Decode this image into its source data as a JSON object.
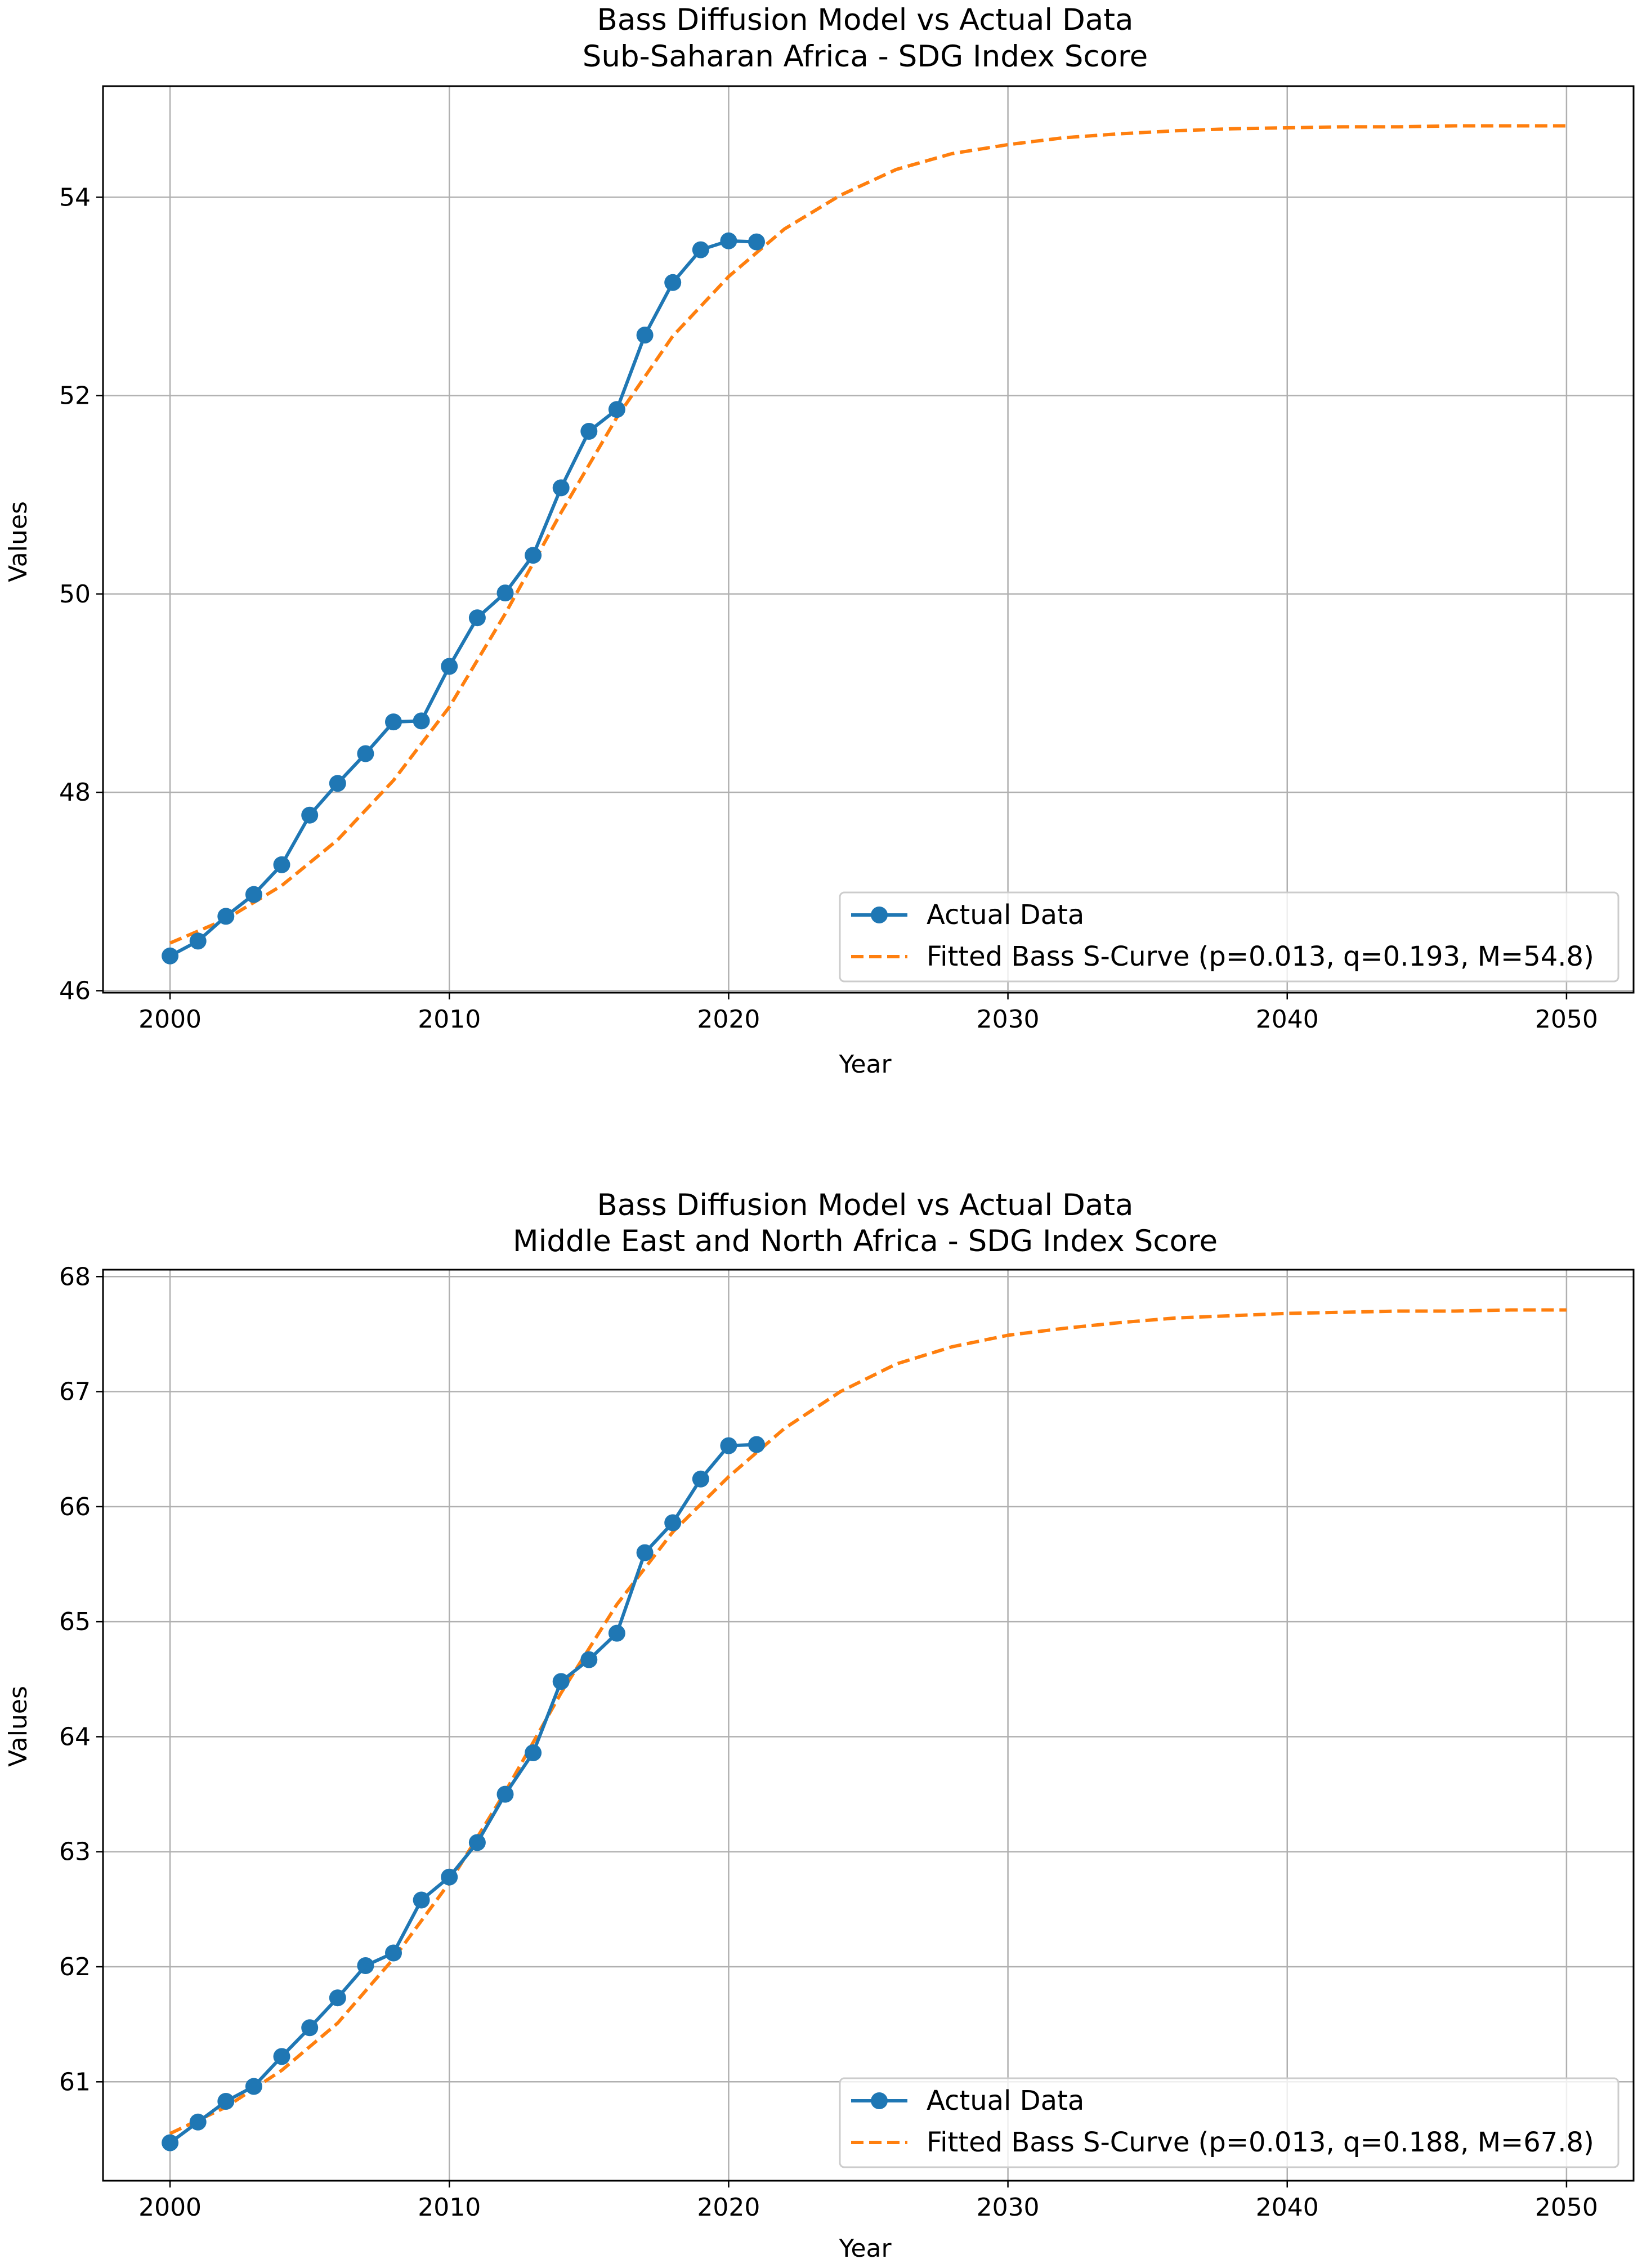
{
  "chart_data": [
    {
      "type": "line",
      "title": "Bass Diffusion Model vs Actual Data",
      "subtitle": "Sub-Saharan Africa - SDG Index Score",
      "xlabel": "Year",
      "ylabel": "Values",
      "xlim": [
        1997.6,
        2052.4
      ],
      "ylim": [
        45.98,
        55.12
      ],
      "xticks": [
        "2000",
        "2010",
        "2020",
        "2030",
        "2040",
        "2050"
      ],
      "yticks": [
        "46",
        "48",
        "50",
        "52",
        "54"
      ],
      "grid": true,
      "legend_position": "lower right",
      "colors": {
        "actual": "#1f77b4",
        "fitted": "#ff7f0e"
      },
      "series": [
        {
          "name": "Actual Data",
          "style": "solid-with-circle-markers",
          "x": [
            2000,
            2001,
            2002,
            2003,
            2004,
            2005,
            2006,
            2007,
            2008,
            2009,
            2010,
            2011,
            2012,
            2013,
            2014,
            2015,
            2016,
            2017,
            2018,
            2019,
            2020,
            2021
          ],
          "y": [
            46.35,
            46.5,
            46.75,
            46.97,
            47.27,
            47.77,
            48.09,
            48.39,
            48.71,
            48.72,
            49.27,
            49.76,
            50.01,
            50.39,
            51.07,
            51.64,
            51.86,
            52.61,
            53.14,
            53.47,
            53.56,
            53.55
          ]
        },
        {
          "name": "Fitted Bass S-Curve (p=0.013, q=0.193, M=54.8)",
          "style": "dashed",
          "x": [
            2000,
            2002,
            2004,
            2006,
            2008,
            2010,
            2012,
            2014,
            2016,
            2018,
            2020,
            2022,
            2024,
            2026,
            2028,
            2030,
            2032,
            2034,
            2036,
            2038,
            2040,
            2042,
            2044,
            2046,
            2048,
            2050
          ],
          "y": [
            46.48,
            46.72,
            47.06,
            47.52,
            48.12,
            48.86,
            49.8,
            50.82,
            51.78,
            52.6,
            53.2,
            53.68,
            54.02,
            54.28,
            54.44,
            54.53,
            54.6,
            54.64,
            54.67,
            54.69,
            54.7,
            54.71,
            54.71,
            54.72,
            54.72,
            54.72
          ]
        }
      ]
    },
    {
      "type": "line",
      "title": "Bass Diffusion Model vs Actual Data",
      "subtitle": "Middle East and North Africa - SDG Index Score",
      "xlabel": "Year",
      "ylabel": "Values",
      "xlim": [
        1997.6,
        2052.4
      ],
      "ylim": [
        60.14,
        68.06
      ],
      "xticks": [
        "2000",
        "2010",
        "2020",
        "2030",
        "2040",
        "2050"
      ],
      "yticks": [
        "61",
        "62",
        "63",
        "64",
        "65",
        "66",
        "67",
        "68"
      ],
      "grid": true,
      "legend_position": "lower right",
      "colors": {
        "actual": "#1f77b4",
        "fitted": "#ff7f0e"
      },
      "series": [
        {
          "name": "Actual Data",
          "style": "solid-with-circle-markers",
          "x": [
            2000,
            2001,
            2002,
            2003,
            2004,
            2005,
            2006,
            2007,
            2008,
            2009,
            2010,
            2011,
            2012,
            2013,
            2014,
            2015,
            2016,
            2017,
            2018,
            2019,
            2020,
            2021
          ],
          "y": [
            60.47,
            60.65,
            60.83,
            60.96,
            61.22,
            61.47,
            61.73,
            62.01,
            62.12,
            62.58,
            62.78,
            63.08,
            63.5,
            63.86,
            64.48,
            64.67,
            64.9,
            65.6,
            65.86,
            66.24,
            66.53,
            66.54
          ]
        },
        {
          "name": "Fitted Bass S-Curve (p=0.013, q=0.188, M=67.8)",
          "style": "dashed",
          "x": [
            2000,
            2002,
            2004,
            2006,
            2008,
            2010,
            2012,
            2014,
            2016,
            2018,
            2020,
            2022,
            2024,
            2026,
            2028,
            2030,
            2032,
            2034,
            2036,
            2038,
            2040,
            2042,
            2044,
            2046,
            2048,
            2050
          ],
          "y": [
            60.55,
            60.78,
            61.1,
            61.51,
            62.07,
            62.73,
            63.52,
            64.38,
            65.15,
            65.78,
            66.26,
            66.68,
            67.0,
            67.24,
            67.39,
            67.49,
            67.55,
            67.6,
            67.64,
            67.66,
            67.68,
            67.69,
            67.7,
            67.7,
            67.71,
            67.71
          ]
        }
      ]
    }
  ]
}
